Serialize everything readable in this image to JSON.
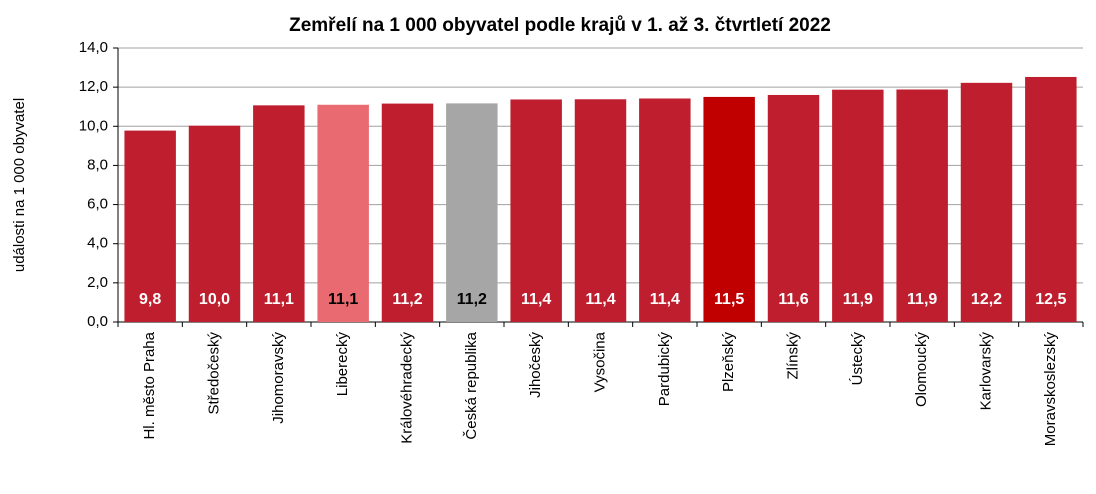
{
  "chart_data": {
    "type": "bar",
    "title": "Zemřelí na 1 000 obyvatel podle krajů v 1. až 3. čtvrtletí 2022",
    "y_label": "události na 1 000 obyvatel",
    "categories": [
      "Hl. město Praha",
      "Středočeský",
      "Jihomoravský",
      "Liberecký",
      "Královéhradecký",
      "Česká republika",
      "Jihočeský",
      "Vysočina",
      "Pardubický",
      "Plzeňský",
      "Zlínský",
      "Ústecký",
      "Olomoucký",
      "Karlovarský",
      "Moravskoslezský"
    ],
    "values": [
      9.78,
      10.03,
      11.07,
      11.1,
      11.16,
      11.17,
      11.37,
      11.38,
      11.42,
      11.5,
      11.6,
      11.87,
      11.88,
      12.22,
      12.52
    ],
    "value_labels": [
      "9,8",
      "10,0",
      "11,1",
      "11,1",
      "11,2",
      "11,2",
      "11,4",
      "11,4",
      "11,4",
      "11,5",
      "11,6",
      "11,9",
      "11,9",
      "12,2",
      "12,5"
    ],
    "colors": [
      "#be1e2d",
      "#be1e2d",
      "#be1e2d",
      "#ea6a72",
      "#be1e2d",
      "#a6a6a6",
      "#be1e2d",
      "#be1e2d",
      "#be1e2d",
      "#c00000",
      "#be1e2d",
      "#be1e2d",
      "#be1e2d",
      "#be1e2d",
      "#be1e2d"
    ],
    "label_colors": [
      "#ffffff",
      "#ffffff",
      "#ffffff",
      "#000000",
      "#ffffff",
      "#000000",
      "#ffffff",
      "#ffffff",
      "#ffffff",
      "#ffffff",
      "#ffffff",
      "#ffffff",
      "#ffffff",
      "#ffffff",
      "#ffffff"
    ],
    "ylim": [
      0,
      14
    ],
    "yticks": [
      {
        "value": 0,
        "label": "0,0"
      },
      {
        "value": 2,
        "label": "2,0"
      },
      {
        "value": 4,
        "label": "4,0"
      },
      {
        "value": 6,
        "label": "6,0"
      },
      {
        "value": 8,
        "label": "8,0"
      },
      {
        "value": 10,
        "label": "10,0"
      },
      {
        "value": 12,
        "label": "12,0"
      },
      {
        "value": 14,
        "label": "14,0"
      }
    ],
    "grid": true
  }
}
